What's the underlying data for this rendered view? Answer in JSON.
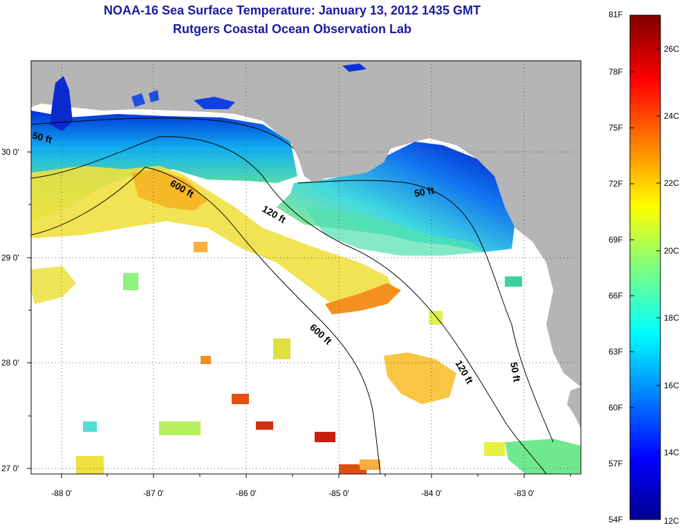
{
  "title": {
    "line1": "NOAA-16 Sea Surface Temperature:  January 13, 2012 1435 GMT",
    "line2": "Rutgers Coastal Ocean Observation Lab"
  },
  "axes": {
    "lon_labels": [
      "-88 0'",
      "-87 0'",
      "-86 0'",
      "-85 0'",
      "-84 0'",
      "-83 0'"
    ],
    "lat_labels": [
      "30 0'",
      "29 0'",
      "28 0'",
      "27 0'"
    ]
  },
  "contours": {
    "c50_west": "50 ft",
    "c600_north": "600 ft",
    "c120_north": "120 ft",
    "c50_bigbend": "50 ft",
    "c600_south": "600 ft",
    "c120_south": "120 ft",
    "c50_south": "50 ft"
  },
  "colorbar": {
    "fahrenheit": [
      "81F",
      "78F",
      "75F",
      "72F",
      "69F",
      "66F",
      "63F",
      "60F",
      "57F",
      "54F"
    ],
    "celsius": [
      "26C",
      "24C",
      "22C",
      "20C",
      "18C",
      "16C",
      "14C",
      "12C"
    ]
  },
  "colors": {
    "land": "#b5b5b5",
    "cloud": "#ffffff",
    "title": "#1a1aa0"
  }
}
